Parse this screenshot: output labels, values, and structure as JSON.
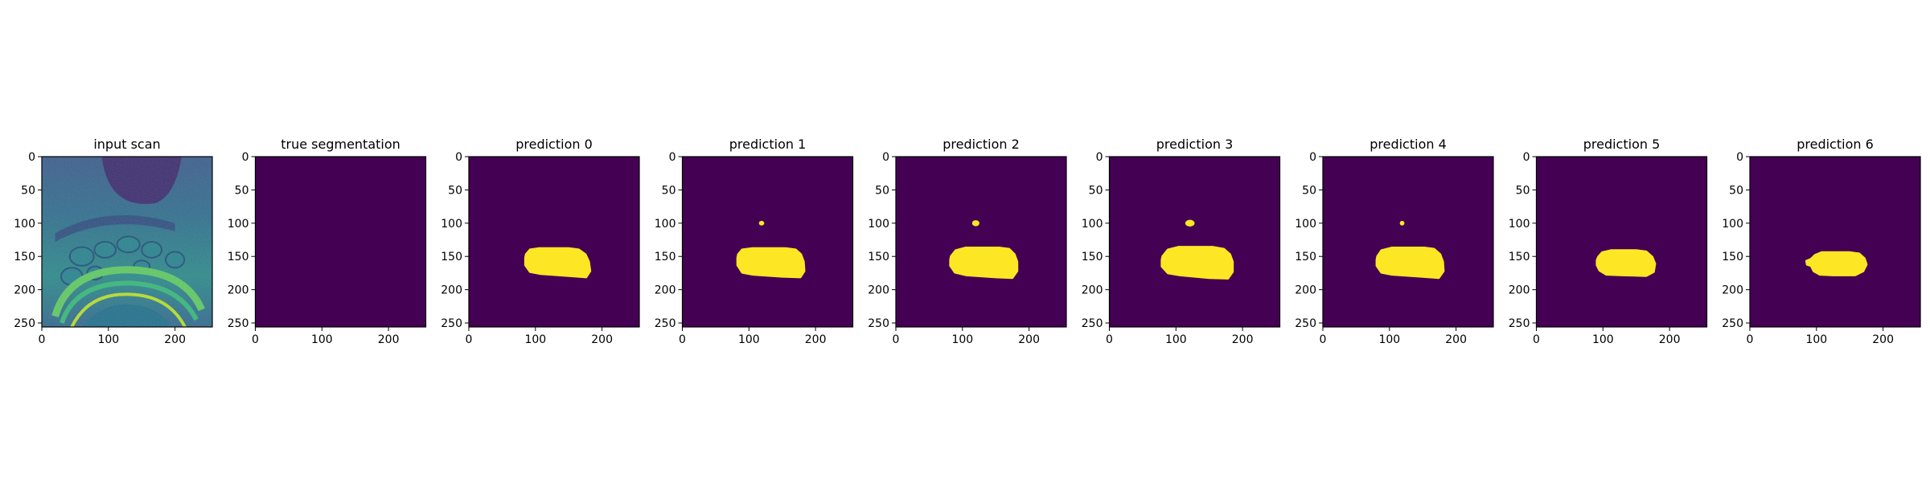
{
  "colors": {
    "background_class": "#440154",
    "foreground_class": "#fde725",
    "axis": "#000000"
  },
  "chart_data": [
    {
      "type": "heatmap",
      "title": "input scan",
      "content": "mri-scan",
      "xlim": [
        0,
        256
      ],
      "ylim": [
        256,
        0
      ],
      "xticks": [
        0,
        100,
        200
      ],
      "yticks": [
        0,
        50,
        100,
        150,
        200,
        250
      ],
      "grid": false
    },
    {
      "type": "heatmap",
      "title": "true segmentation",
      "content": "mask",
      "xlim": [
        0,
        256
      ],
      "ylim": [
        256,
        0
      ],
      "xticks": [
        0,
        100,
        200
      ],
      "yticks": [
        0,
        50,
        100,
        150,
        200,
        250
      ],
      "grid": false,
      "regions": []
    },
    {
      "type": "heatmap",
      "title": "prediction 0",
      "content": "mask",
      "xlim": [
        0,
        256
      ],
      "ylim": [
        256,
        0
      ],
      "xticks": [
        0,
        100,
        200
      ],
      "yticks": [
        0,
        50,
        100,
        150,
        200,
        250
      ],
      "grid": false,
      "regions": [
        {
          "polygon": [
            [
              86,
              147
            ],
            [
              92,
              140
            ],
            [
              105,
              138
            ],
            [
              150,
              138
            ],
            [
              165,
              140
            ],
            [
              175,
              147
            ],
            [
              180,
              158
            ],
            [
              182,
              172
            ],
            [
              176,
              181
            ],
            [
              150,
              179
            ],
            [
              108,
              176
            ],
            [
              92,
              173
            ],
            [
              85,
              163
            ],
            [
              85,
              152
            ]
          ]
        }
      ]
    },
    {
      "type": "heatmap",
      "title": "prediction 1",
      "content": "mask",
      "xlim": [
        0,
        256
      ],
      "ylim": [
        256,
        0
      ],
      "xticks": [
        0,
        100,
        200
      ],
      "yticks": [
        0,
        50,
        100,
        150,
        200,
        250
      ],
      "grid": false,
      "regions": [
        {
          "polygon": [
            [
              84,
              147
            ],
            [
              90,
              140
            ],
            [
              105,
              138
            ],
            [
              155,
              138
            ],
            [
              170,
              140
            ],
            [
              178,
              147
            ],
            [
              182,
              158
            ],
            [
              183,
              172
            ],
            [
              177,
              181
            ],
            [
              150,
              180
            ],
            [
              106,
              177
            ],
            [
              90,
              174
            ],
            [
              83,
              163
            ],
            [
              83,
              152
            ]
          ]
        },
        {
          "ellipse": {
            "cx": 119,
            "cy": 100,
            "rx": 4,
            "ry": 3.5
          }
        }
      ]
    },
    {
      "type": "heatmap",
      "title": "prediction 2",
      "content": "mask",
      "xlim": [
        0,
        256
      ],
      "ylim": [
        256,
        0
      ],
      "xticks": [
        0,
        100,
        200
      ],
      "yticks": [
        0,
        50,
        100,
        150,
        200,
        250
      ],
      "grid": false,
      "regions": [
        {
          "polygon": [
            [
              83,
              150
            ],
            [
              90,
              141
            ],
            [
              105,
              137
            ],
            [
              155,
              137
            ],
            [
              170,
              139
            ],
            [
              178,
              147
            ],
            [
              182,
              158
            ],
            [
              182,
              172
            ],
            [
              175,
              182
            ],
            [
              150,
              181
            ],
            [
              106,
              178
            ],
            [
              89,
              174
            ],
            [
              82,
              164
            ],
            [
              82,
              155
            ]
          ]
        },
        {
          "ellipse": {
            "cx": 120,
            "cy": 100,
            "rx": 5.5,
            "ry": 4.5
          }
        }
      ]
    },
    {
      "type": "heatmap",
      "title": "prediction 3",
      "content": "mask",
      "xlim": [
        0,
        256
      ],
      "ylim": [
        256,
        0
      ],
      "xticks": [
        0,
        100,
        200
      ],
      "yticks": [
        0,
        50,
        100,
        150,
        200,
        250
      ],
      "grid": false,
      "regions": [
        {
          "polygon": [
            [
              80,
              150
            ],
            [
              88,
              140
            ],
            [
              104,
              136
            ],
            [
              155,
              136
            ],
            [
              172,
              139
            ],
            [
              181,
              147
            ],
            [
              185,
              158
            ],
            [
              185,
              173
            ],
            [
              178,
              183
            ],
            [
              150,
              182
            ],
            [
              106,
              178
            ],
            [
              88,
              175
            ],
            [
              79,
              165
            ],
            [
              79,
              155
            ]
          ]
        },
        {
          "ellipse": {
            "cx": 121,
            "cy": 100,
            "rx": 7,
            "ry": 5
          }
        }
      ]
    },
    {
      "type": "heatmap",
      "title": "prediction 4",
      "content": "mask",
      "xlim": [
        0,
        256
      ],
      "ylim": [
        256,
        0
      ],
      "xticks": [
        0,
        100,
        200
      ],
      "yticks": [
        0,
        50,
        100,
        150,
        200,
        250
      ],
      "grid": false,
      "regions": [
        {
          "polygon": [
            [
              82,
              150
            ],
            [
              88,
              141
            ],
            [
              104,
              137
            ],
            [
              152,
              137
            ],
            [
              167,
              139
            ],
            [
              176,
              147
            ],
            [
              180,
              158
            ],
            [
              181,
              172
            ],
            [
              174,
              182
            ],
            [
              148,
              180
            ],
            [
              104,
              177
            ],
            [
              88,
              174
            ],
            [
              81,
              164
            ],
            [
              81,
              155
            ]
          ]
        },
        {
          "ellipse": {
            "cx": 119,
            "cy": 100,
            "rx": 3.5,
            "ry": 3.5
          }
        }
      ]
    },
    {
      "type": "heatmap",
      "title": "prediction 5",
      "content": "mask",
      "xlim": [
        0,
        256
      ],
      "ylim": [
        256,
        0
      ],
      "xticks": [
        0,
        100,
        200
      ],
      "yticks": [
        0,
        50,
        100,
        150,
        200,
        250
      ],
      "grid": false,
      "regions": [
        {
          "polygon": [
            [
              93,
              151
            ],
            [
              99,
              144
            ],
            [
              112,
              141
            ],
            [
              150,
              141
            ],
            [
              165,
              143
            ],
            [
              174,
              151
            ],
            [
              178,
              161
            ],
            [
              176,
              173
            ],
            [
              165,
              179
            ],
            [
              130,
              178
            ],
            [
              105,
              177
            ],
            [
              95,
              171
            ],
            [
              91,
              163
            ],
            [
              91,
              156
            ]
          ]
        }
      ]
    },
    {
      "type": "heatmap",
      "title": "prediction 6",
      "content": "mask",
      "xlim": [
        0,
        256
      ],
      "ylim": [
        256,
        0
      ],
      "xticks": [
        0,
        100,
        200
      ],
      "yticks": [
        0,
        50,
        100,
        150,
        200,
        250
      ],
      "grid": false,
      "regions": [
        {
          "polygon": [
            [
              85,
              157
            ],
            [
              92,
              154
            ],
            [
              98,
              148
            ],
            [
              108,
              144
            ],
            [
              150,
              144
            ],
            [
              164,
              146
            ],
            [
              172,
              153
            ],
            [
              175,
              162
            ],
            [
              170,
              172
            ],
            [
              158,
              178
            ],
            [
              125,
              178
            ],
            [
              105,
              177
            ],
            [
              96,
              172
            ],
            [
              92,
              164
            ],
            [
              86,
              162
            ]
          ]
        }
      ]
    }
  ]
}
